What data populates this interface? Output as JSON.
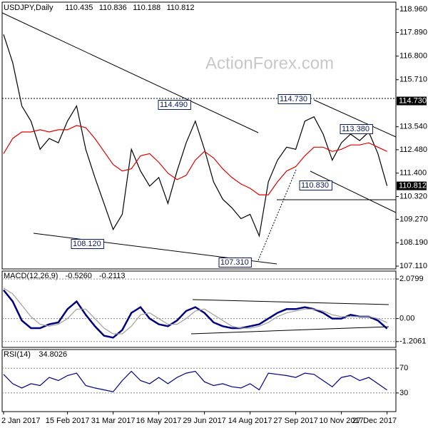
{
  "chart_data": [
    {
      "type": "line",
      "title": "USDJPY,Daily",
      "ohlc": [
        110.435,
        110.836,
        110.188,
        110.812
      ],
      "watermark": "ActionForex.com",
      "categories": [
        "2 Jan 2017",
        null,
        null,
        null,
        null,
        null,
        null,
        "15 Feb 2017",
        null,
        null,
        null,
        null,
        "31 Mar 2017",
        null,
        null,
        null,
        null,
        "16 May 2017",
        null,
        null,
        null,
        null,
        "29 Jun 2017",
        null,
        null,
        null,
        null,
        "14 Aug 2017",
        null,
        null,
        null,
        null,
        "27 Sep 2017",
        null,
        null,
        null,
        null,
        "10 Nov 2017",
        null,
        null,
        null,
        null,
        "27 Dec 2017"
      ],
      "series": [
        {
          "color": "#000000",
          "values": [
            117.8,
            116.5,
            114.5,
            113.8,
            112.5,
            113.0,
            112.8,
            113.8,
            114.5,
            112.5,
            111.2,
            110.0,
            108.8,
            109.5,
            112.5,
            111.5,
            110.8,
            111.2,
            110.0,
            111.5,
            112.8,
            113.8,
            112.5,
            111.0,
            110.2,
            109.8,
            109.3,
            109.5,
            108.5,
            111.0,
            112.0,
            112.6,
            112.5,
            113.8,
            114.0,
            113.2,
            112.0,
            112.8,
            113.2,
            112.9,
            113.3,
            112.3,
            110.812
          ]
        },
        {
          "color": "#e00000",
          "values": [
            112.3,
            113.0,
            113.3,
            113.3,
            113.4,
            113.3,
            113.4,
            113.4,
            113.6,
            113.5,
            113.0,
            112.4,
            111.8,
            111.5,
            111.6,
            112.2,
            112.3,
            111.9,
            111.4,
            111.1,
            111.3,
            112.0,
            112.4,
            112.1,
            111.6,
            111.2,
            110.9,
            110.7,
            110.4,
            110.4,
            111.0,
            111.5,
            111.7,
            112.2,
            112.6,
            112.6,
            112.4,
            112.5,
            112.7,
            112.7,
            112.8,
            112.6,
            112.4
          ]
        }
      ],
      "ylim": [
        106.98,
        119.29
      ],
      "yticks": [
        {
          "value": 118.96,
          "label": "118.960"
        },
        {
          "value": 117.89,
          "label": "117.890"
        },
        {
          "value": 116.8,
          "label": "116.800"
        },
        {
          "value": 115.71,
          "label": "115.710"
        },
        {
          "value": 113.54,
          "label": "113.540"
        },
        {
          "value": 112.48,
          "label": "112.480"
        },
        {
          "value": 111.4,
          "label": "111.400"
        },
        {
          "value": 110.32,
          "label": "110.320"
        },
        {
          "value": 109.27,
          "label": "109.270"
        },
        {
          "value": 108.19,
          "label": "108.190"
        },
        {
          "value": 107.11,
          "label": "107.110"
        }
      ],
      "annotations": [
        "114.490",
        "114.730",
        "113.380",
        "110.830",
        "108.120",
        "107.310"
      ],
      "price_labels": [
        {
          "value": 114.73,
          "label": "114.730"
        },
        {
          "value": 110.812,
          "label": "110.812"
        }
      ]
    },
    {
      "type": "line",
      "title": "MACD(12,26,9)",
      "title_values": [
        {
          "value": -0.526,
          "label": "-0.5260"
        },
        -0.2113
      ],
      "series": [
        {
          "color": "#000080",
          "values": [
            1.5,
            0.9,
            -0.1,
            -0.5,
            -0.5,
            -0.3,
            -0.2,
            0.5,
            0.9,
            0.2,
            -0.4,
            -0.9,
            -1.0,
            -0.6,
            0.3,
            0.6,
            0,
            -0.3,
            -0.4,
            -0.1,
            0.4,
            0.6,
            0.3,
            -0.2,
            -0.4,
            -0.5,
            -0.5,
            -0.4,
            -0.3,
            0,
            0.3,
            0.5,
            0.5,
            0.6,
            0.5,
            0.3,
            0,
            0,
            0.2,
            0.1,
            0.1,
            -0.1,
            -0.526
          ]
        },
        {
          "color": "#a0a0a0",
          "values": [
            1.6,
            1.3,
            0.7,
            0.1,
            -0.3,
            -0.4,
            -0.3,
            0,
            0.5,
            0.5,
            0,
            -0.5,
            -0.8,
            -0.8,
            -0.4,
            0.2,
            0.3,
            0,
            -0.3,
            -0.3,
            0,
            0.4,
            0.5,
            0.2,
            -0.1,
            -0.4,
            -0.5,
            -0.5,
            -0.4,
            -0.2,
            0.1,
            0.3,
            0.4,
            0.5,
            0.5,
            0.4,
            0.2,
            0.1,
            0.1,
            0.1,
            0.1,
            0,
            -0.2113
          ]
        }
      ],
      "ylim": [
        -1.513,
        2.496
      ],
      "yticks": [
        2.0799,
        {
          "value": 0,
          "label": "0.00"
        },
        -1.2061
      ]
    },
    {
      "type": "line",
      "title": "RSI(14)",
      "title_values": [
        34.8026
      ],
      "series": [
        {
          "color": "#000080",
          "values": [
            60,
            45,
            38,
            45,
            42,
            55,
            50,
            58,
            62,
            42,
            38,
            35,
            32,
            50,
            65,
            50,
            45,
            55,
            45,
            55,
            62,
            65,
            48,
            42,
            45,
            40,
            38,
            45,
            35,
            62,
            60,
            58,
            55,
            62,
            60,
            50,
            40,
            55,
            58,
            50,
            55,
            45,
            34.8026
          ]
        }
      ],
      "ylim": [
        0,
        100
      ],
      "yticks": [
        30,
        70
      ]
    }
  ]
}
